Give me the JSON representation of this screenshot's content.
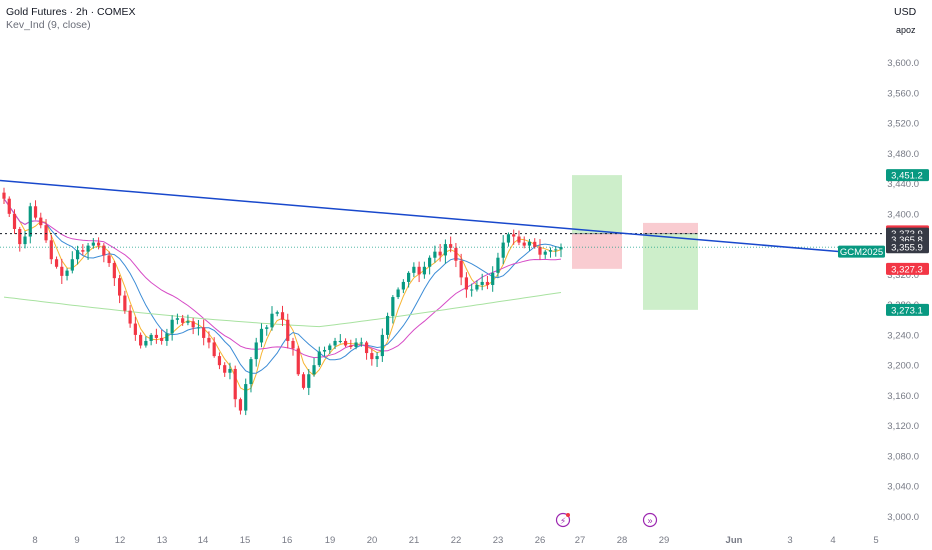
{
  "header": {
    "symbol_title": "Gold Futures · 2h · COMEX",
    "indicator": "Kev_Ind  (9, close)",
    "currency": "USD",
    "scale_mode": "apoz"
  },
  "colors": {
    "up": "#089981",
    "down": "#f23645",
    "trendline": "#1848cc",
    "ma_fast": "#f7b532",
    "ma_mid": "#3c8cd6",
    "ma_slow": "#d64bc6",
    "ma_long": "#a8e2a0",
    "tp_zone": "#c8ecc4",
    "sl_zone": "#f8c7cc"
  },
  "chart_data": {
    "type": "candlestick",
    "y_axis_ticks": [
      "3,600.0",
      "3,560.0",
      "3,520.0",
      "3,480.0",
      "3,440.0",
      "3,400.0",
      "3,360.0",
      "3,320.0",
      "3,280.0",
      "3,240.0",
      "3,200.0",
      "3,160.0",
      "3,120.0",
      "3,080.0",
      "3,040.0",
      "3,000.0"
    ],
    "x_axis_ticks": [
      "8",
      "9",
      "12",
      "13",
      "14",
      "15",
      "16",
      "19",
      "20",
      "21",
      "22",
      "23",
      "26",
      "27",
      "28",
      "29",
      "Jun",
      "3",
      "4",
      "5"
    ],
    "ylim": [
      2990,
      3620
    ],
    "price_tags": [
      {
        "label": "3,451.2",
        "value": 3451.2,
        "color": "#089981"
      },
      {
        "label": "3,376.8",
        "value": 3376.8,
        "color": "#f23645"
      },
      {
        "label": "3,373.9",
        "value": 3373.9,
        "color": "#363a45"
      },
      {
        "label": "3,365.8",
        "value": 3365.8,
        "color": "#363a45"
      },
      {
        "label": "3,355.9",
        "value": 3355.9,
        "color": "#363a45"
      },
      {
        "label": "3,327.3",
        "value": 3327.3,
        "color": "#f23645"
      },
      {
        "label": "3,273.1",
        "value": 3273.1,
        "color": "#089981"
      }
    ],
    "symbol_tag": "GCM2025",
    "close_series": [
      3420,
      3400,
      3380,
      3360,
      3370,
      3410,
      3395,
      3385,
      3365,
      3340,
      3330,
      3318,
      3325,
      3340,
      3352,
      3350,
      3358,
      3362,
      3358,
      3345,
      3335,
      3315,
      3292,
      3272,
      3255,
      3240,
      3226,
      3232,
      3240,
      3236,
      3232,
      3242,
      3260,
      3262,
      3256,
      3258,
      3250,
      3250,
      3236,
      3230,
      3212,
      3200,
      3190,
      3195,
      3155,
      3140,
      3175,
      3208,
      3230,
      3248,
      3250,
      3268,
      3270,
      3260,
      3232,
      3222,
      3188,
      3170,
      3188,
      3200,
      3218,
      3220,
      3226,
      3232,
      3232,
      3226,
      3224,
      3230,
      3230,
      3216,
      3208,
      3212,
      3240,
      3265,
      3290,
      3300,
      3310,
      3322,
      3330,
      3320,
      3330,
      3342,
      3350,
      3345,
      3360,
      3355,
      3338,
      3316,
      3300,
      3300,
      3306,
      3310,
      3306,
      3322,
      3342,
      3362,
      3373,
      3370,
      3362,
      3358,
      3363,
      3356,
      3346,
      3350,
      3352,
      3353,
      3356
    ],
    "moving_averages": [
      {
        "period": "9",
        "values": "tracks close"
      }
    ],
    "trendline": {
      "start_value": 3444,
      "end_value": 3350
    },
    "trade_setups": [
      {
        "entry": 3373.9,
        "target": 3451.2,
        "stop": 3327.3,
        "direction": "long"
      },
      {
        "entry": 3373.9,
        "target": 3273.1,
        "stop": 3388.0,
        "direction": "short"
      }
    ],
    "dotted_line_value": 3373.9
  }
}
